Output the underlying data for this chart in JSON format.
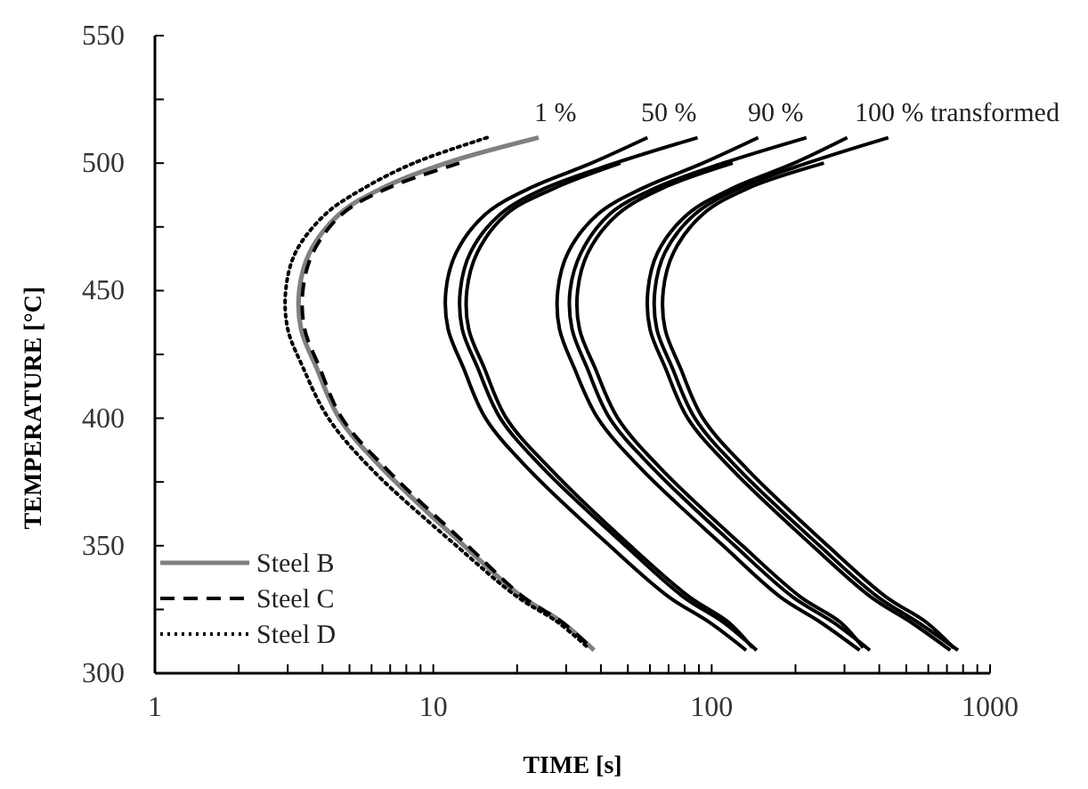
{
  "chart_data": {
    "type": "line",
    "xlabel": "TIME [s]",
    "ylabel": "TEMPERATURE [°C]",
    "log": "x",
    "xlim": [
      1,
      1000
    ],
    "ylim": [
      300,
      550
    ],
    "xticks": [
      1,
      {
        "value": 2,
        "label": null
      },
      {
        "value": 3,
        "label": null
      },
      {
        "value": 4,
        "label": null
      },
      {
        "value": 5,
        "label": null
      },
      {
        "value": 6,
        "label": null
      },
      {
        "value": 7,
        "label": null
      },
      {
        "value": 8,
        "label": null
      },
      {
        "value": 9,
        "label": null
      },
      10,
      {
        "value": 20,
        "label": null
      },
      {
        "value": 30,
        "label": null
      },
      {
        "value": 40,
        "label": null
      },
      {
        "value": 50,
        "label": null
      },
      {
        "value": 60,
        "label": null
      },
      {
        "value": 70,
        "label": null
      },
      {
        "value": 80,
        "label": null
      },
      {
        "value": 90,
        "label": null
      },
      100,
      {
        "value": 200,
        "label": null
      },
      {
        "value": 300,
        "label": null
      },
      {
        "value": 400,
        "label": null
      },
      {
        "value": 500,
        "label": null
      },
      {
        "value": 600,
        "label": null
      },
      {
        "value": 700,
        "label": null
      },
      {
        "value": 800,
        "label": null
      },
      {
        "value": 900,
        "label": null
      },
      1000
    ],
    "yticks": [
      300,
      {
        "value": 325,
        "label": null
      },
      350,
      {
        "value": 375,
        "label": null
      },
      400,
      {
        "value": 425,
        "label": null
      },
      450,
      {
        "value": 475,
        "label": null
      },
      500,
      {
        "value": 525,
        "label": null
      },
      550
    ],
    "grid": false,
    "legend": "bottom left",
    "series": [
      {
        "name": "Steel B",
        "color": "#808080",
        "line_style": "solid",
        "x": [
          23.9,
          11.1,
          6.5,
          4.6,
          3.6,
          3.3,
          3.35,
          3.8,
          4.6,
          6.6,
          12.9,
          20.8,
          29,
          37.8
        ],
        "values": [
          510,
          500,
          490,
          480,
          465,
          450,
          435,
          420,
          400,
          380,
          350,
          330,
          320,
          309
        ]
      },
      {
        "name": "Steel C",
        "color": "#000000",
        "line_style": "dashed",
        "x": [
          12.4,
          6.8,
          4.7,
          3.7,
          3.4,
          3.45,
          3.9,
          4.7,
          6.8,
          13.3,
          21,
          29,
          37
        ],
        "values": [
          500,
          490,
          480,
          465,
          450,
          435,
          420,
          400,
          380,
          350,
          330,
          320,
          310
        ]
      },
      {
        "name": "Steel D",
        "color": "#000000",
        "line_style": "dotted",
        "x": [
          15.6,
          8.5,
          5.6,
          4.1,
          3.2,
          2.95,
          3.0,
          3.4,
          4.2,
          6.0,
          12.1,
          20,
          28,
          36
        ],
        "values": [
          510,
          500,
          490,
          480,
          465,
          450,
          435,
          420,
          400,
          380,
          350,
          330,
          320,
          310
        ]
      },
      {
        "color": "#000000",
        "line_style": "solid",
        "x": [
          58.8,
          37,
          22,
          15.4,
          12.1,
          11.1,
          11.3,
          12.8,
          15.4,
          22,
          43,
          70,
          98,
          133
        ],
        "values": [
          510,
          500,
          490,
          480,
          465,
          450,
          435,
          420,
          400,
          380,
          350,
          330,
          320,
          309
        ]
      },
      {
        "color": "#000000",
        "line_style": "solid",
        "x": [
          89,
          45,
          25,
          17.4,
          13.6,
          12.5,
          12.7,
          14.4,
          17.4,
          25,
          49,
          79,
          110,
          145
        ],
        "values": [
          510,
          500,
          490,
          480,
          465,
          450,
          435,
          420,
          400,
          380,
          350,
          330,
          320,
          309
        ]
      },
      {
        "color": "#000000",
        "line_style": "solid",
        "x": [
          47,
          27,
          18.3,
          14.4,
          13.2,
          13.4,
          15.2,
          18.3,
          26.4,
          51,
          83,
          115,
          140
        ],
        "values": [
          500,
          490,
          480,
          465,
          450,
          435,
          420,
          400,
          380,
          350,
          330,
          320,
          310
        ]
      },
      {
        "color": "#000000",
        "line_style": "solid",
        "x": [
          147,
          93,
          56,
          39,
          30.5,
          28,
          28.4,
          32,
          39,
          56,
          110,
          176,
          246,
          340
        ],
        "values": [
          510,
          500,
          490,
          480,
          465,
          450,
          435,
          420,
          400,
          380,
          350,
          330,
          320,
          309
        ]
      },
      {
        "color": "#000000",
        "line_style": "solid",
        "x": [
          219,
          110,
          62,
          43,
          34,
          31,
          31.5,
          35.6,
          43,
          62,
          121,
          195,
          273,
          370
        ],
        "values": [
          510,
          500,
          490,
          480,
          465,
          450,
          435,
          420,
          400,
          380,
          350,
          330,
          320,
          309
        ]
      },
      {
        "color": "#000000",
        "line_style": "solid",
        "x": [
          119,
          66,
          46,
          36,
          33,
          33.5,
          38,
          46,
          66,
          129,
          208,
          290,
          350
        ],
        "values": [
          500,
          490,
          480,
          465,
          450,
          435,
          420,
          400,
          380,
          350,
          330,
          320,
          310
        ]
      },
      {
        "color": "#000000",
        "line_style": "solid",
        "x": [
          307,
          198,
          118,
          82,
          64,
          59,
          60,
          68,
          82,
          118,
          230,
          372,
          520,
          720
        ],
        "values": [
          510,
          500,
          490,
          480,
          465,
          450,
          435,
          420,
          400,
          380,
          350,
          330,
          320,
          309
        ]
      },
      {
        "color": "#000000",
        "line_style": "solid",
        "x": [
          431,
          220,
          125,
          87,
          68,
          62.5,
          63.5,
          72,
          87,
          125,
          244,
          394,
          550,
          767
        ],
        "values": [
          510,
          500,
          490,
          480,
          465,
          450,
          435,
          420,
          400,
          380,
          350,
          330,
          320,
          309
        ]
      },
      {
        "color": "#000000",
        "line_style": "solid",
        "x": [
          253,
          134,
          93,
          73,
          67,
          68,
          77,
          93,
          134,
          261,
          422,
          590,
          740
        ],
        "values": [
          500,
          490,
          480,
          465,
          450,
          435,
          420,
          400,
          380,
          350,
          330,
          320,
          310
        ]
      }
    ],
    "annotations": [
      "1 %",
      "50 %",
      "90 %",
      "100 % transformed"
    ]
  }
}
